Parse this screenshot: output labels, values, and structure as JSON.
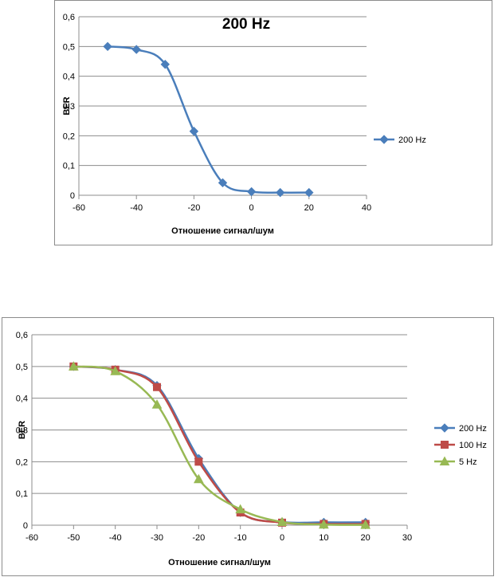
{
  "chart_data": [
    {
      "type": "line",
      "title": "200 Hz",
      "xlabel": "Отношение сигнал/шум",
      "ylabel": "BER",
      "xlim": [
        -60,
        40
      ],
      "ylim": [
        0,
        0.6
      ],
      "xticks": [
        "-60",
        "-40",
        "-20",
        "0",
        "20",
        "40"
      ],
      "yticks": [
        "0",
        "0,1",
        "0,2",
        "0,3",
        "0,4",
        "0,5",
        "0,6"
      ],
      "grid": "horizontal",
      "legend": "right",
      "series": [
        {
          "name": "200 Hz",
          "color": "#4a7ebb",
          "marker": "diamond",
          "x": [
            -50,
            -40,
            -30,
            -20,
            -10,
            0,
            10,
            20
          ],
          "values": [
            0.5,
            0.49,
            0.44,
            0.215,
            0.042,
            0.012,
            0.009,
            0.009
          ]
        }
      ]
    },
    {
      "type": "line",
      "title": "",
      "xlabel": "Отношение сигнал/шум",
      "ylabel": "BER",
      "xlim": [
        -60,
        30
      ],
      "ylim": [
        0,
        0.6
      ],
      "xticks": [
        "-60",
        "-50",
        "-40",
        "-30",
        "-20",
        "-10",
        "0",
        "10",
        "20",
        "30"
      ],
      "yticks": [
        "0",
        "0,1",
        "0,2",
        "0,3",
        "0,4",
        "0,5",
        "0,6"
      ],
      "grid": "horizontal",
      "legend": "right",
      "series": [
        {
          "name": "200 Hz",
          "color": "#4a7ebb",
          "marker": "diamond",
          "x": [
            -50,
            -40,
            -30,
            -20,
            -10,
            0,
            10,
            20
          ],
          "values": [
            0.5,
            0.49,
            0.44,
            0.21,
            0.04,
            0.01,
            0.009,
            0.009
          ]
        },
        {
          "name": "100 Hz",
          "color": "#be4b48",
          "marker": "square",
          "x": [
            -50,
            -40,
            -30,
            -20,
            -10,
            0,
            10,
            20
          ],
          "values": [
            0.5,
            0.49,
            0.435,
            0.2,
            0.04,
            0.008,
            0.004,
            0.004
          ]
        },
        {
          "name": "5 Hz",
          "color": "#98b954",
          "marker": "triangle",
          "x": [
            -50,
            -40,
            -30,
            -20,
            -10,
            0,
            10,
            20
          ],
          "values": [
            0.5,
            0.485,
            0.38,
            0.145,
            0.05,
            0.01,
            0.002,
            0.001
          ]
        }
      ]
    }
  ]
}
